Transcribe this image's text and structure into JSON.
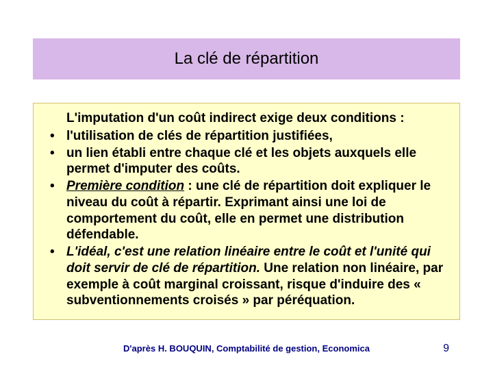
{
  "colors": {
    "title_bg": "#d8b8e8",
    "content_bg": "#ffffcc",
    "content_border": "#d0c070",
    "text": "#000000",
    "footer": "#000080"
  },
  "title": "La clé de répartition",
  "intro": "L'imputation d'un coût indirect exige deux conditions :",
  "bullets": [
    {
      "html": "l'utilisation de clés de répartition justifiées,"
    },
    {
      "html": "un lien établi entre chaque clé et les objets auxquels elle permet d'imputer des coûts."
    },
    {
      "html": "<span class=\"italic underline\">Première condition</span> : une clé de répartition doit expliquer le niveau du coût à répartir. Exprimant ainsi une loi de comportement du coût, elle en permet une distribution défendable."
    },
    {
      "html": "<span class=\"italic\">L'idéal, c'est une relation linéaire entre le coût et l'unité qui doit servir de clé de répartition.</span> Une relation non linéaire, par exemple à coût marginal croissant, risque d'induire des « subventionnements croisés » par péréquation."
    }
  ],
  "footer_credit": "D'après H. BOUQUIN, Comptabilité de gestion, Economica",
  "page_number": "9"
}
